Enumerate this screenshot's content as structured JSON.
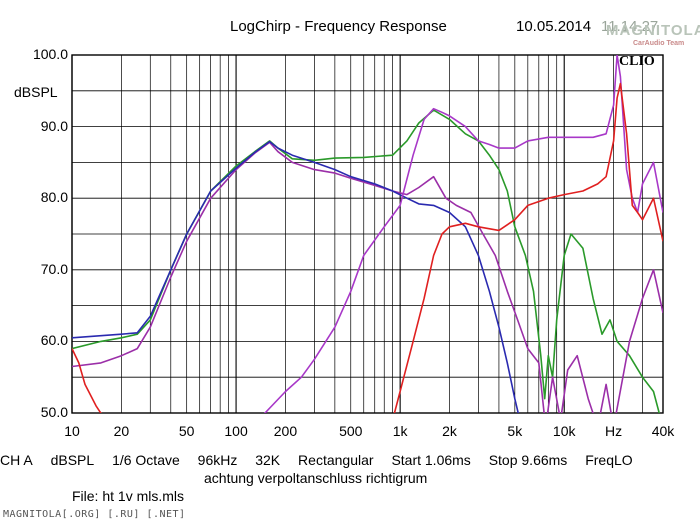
{
  "header": {
    "title": "LogChirp - Frequency Response",
    "date": "10.05.2014",
    "time": "11.14.27",
    "watermark": "MAGNITOLA",
    "watermark_sub": "CarAudio Team",
    "brand": "CLIO"
  },
  "info_bar": {
    "items": [
      "CH A",
      "dBSPL",
      "1/6 Octave",
      "96kHz",
      "32K",
      "Rectangular",
      "Start 1.06ms",
      "Stop 9.66ms",
      "FreqLO"
    ],
    "comment": "achtung verpoltanschluss richtigrum",
    "file": "File: ht 1v mls.mls"
  },
  "footer": "MAGNITOLA[.ORG] [.RU] [.NET]",
  "chart_data": {
    "type": "line",
    "title": "LogChirp - Frequency Response",
    "ylabel": "dBSPL",
    "xlabel": "",
    "x_scale": "log",
    "xlim": [
      10,
      40000
    ],
    "ylim": [
      50,
      100
    ],
    "grid": true,
    "legend": "none",
    "y_ticks": [
      {
        "value": 50,
        "label": "50.0"
      },
      {
        "value": 60,
        "label": "60.0"
      },
      {
        "value": 70,
        "label": "70.0"
      },
      {
        "value": 80,
        "label": "80.0"
      },
      {
        "value": 90,
        "label": "90.0"
      },
      {
        "value": 100,
        "label": "100.0"
      }
    ],
    "x_ticks": [
      {
        "value": 10,
        "label": "10"
      },
      {
        "value": 20,
        "label": "20"
      },
      {
        "value": 50,
        "label": "50"
      },
      {
        "value": 100,
        "label": "100"
      },
      {
        "value": 200,
        "label": "200"
      },
      {
        "value": 500,
        "label": "500"
      },
      {
        "value": 1000,
        "label": "1k"
      },
      {
        "value": 2000,
        "label": "2k"
      },
      {
        "value": 5000,
        "label": "5k"
      },
      {
        "value": 10000,
        "label": "10k"
      },
      {
        "value": 20000,
        "label": "Hz"
      },
      {
        "value": 40000,
        "label": "40k"
      }
    ],
    "series": [
      {
        "color": "#2a9a2a",
        "points": [
          [
            10,
            59
          ],
          [
            15,
            60
          ],
          [
            20,
            60.5
          ],
          [
            25,
            61
          ],
          [
            30,
            63
          ],
          [
            40,
            70
          ],
          [
            50,
            75
          ],
          [
            70,
            81
          ],
          [
            100,
            84.5
          ],
          [
            130,
            86.5
          ],
          [
            160,
            88
          ],
          [
            180,
            87
          ],
          [
            220,
            85.5
          ],
          [
            300,
            85.3
          ],
          [
            400,
            85.6
          ],
          [
            600,
            85.7
          ],
          [
            900,
            86
          ],
          [
            1100,
            88
          ],
          [
            1300,
            90.5
          ],
          [
            1600,
            92.3
          ],
          [
            2000,
            91
          ],
          [
            2500,
            89
          ],
          [
            3000,
            88
          ],
          [
            3500,
            86
          ],
          [
            4000,
            84
          ],
          [
            4500,
            81
          ],
          [
            5000,
            76
          ],
          [
            5800,
            72
          ],
          [
            6500,
            67
          ],
          [
            7200,
            58
          ],
          [
            7600,
            52
          ],
          [
            8000,
            58
          ],
          [
            8500,
            55
          ],
          [
            9000,
            63
          ],
          [
            10000,
            72
          ],
          [
            11000,
            75
          ],
          [
            13000,
            73
          ],
          [
            15000,
            66
          ],
          [
            17000,
            61
          ],
          [
            19000,
            63
          ],
          [
            21000,
            60
          ],
          [
            25000,
            58
          ],
          [
            30000,
            55
          ],
          [
            35000,
            53
          ],
          [
            40000,
            48
          ]
        ]
      },
      {
        "color": "#9b2fa8",
        "points": [
          [
            10,
            56.5
          ],
          [
            15,
            57
          ],
          [
            20,
            58
          ],
          [
            25,
            59
          ],
          [
            30,
            62
          ],
          [
            40,
            69
          ],
          [
            50,
            74
          ],
          [
            70,
            80
          ],
          [
            100,
            84
          ],
          [
            130,
            86.3
          ],
          [
            160,
            87.8
          ],
          [
            180,
            86.5
          ],
          [
            220,
            85
          ],
          [
            300,
            84
          ],
          [
            400,
            83.5
          ],
          [
            500,
            82.8
          ],
          [
            700,
            81.8
          ],
          [
            900,
            81
          ],
          [
            1100,
            80.5
          ],
          [
            1300,
            81.5
          ],
          [
            1600,
            83
          ],
          [
            1900,
            80
          ],
          [
            2200,
            79
          ],
          [
            2700,
            78
          ],
          [
            3200,
            75
          ],
          [
            3800,
            72
          ],
          [
            4500,
            67
          ],
          [
            5200,
            63
          ],
          [
            6000,
            59
          ],
          [
            7000,
            57
          ],
          [
            7700,
            48
          ],
          [
            8500,
            55
          ],
          [
            9500,
            49
          ],
          [
            10500,
            56
          ],
          [
            12000,
            58
          ],
          [
            14000,
            52
          ],
          [
            16000,
            48
          ],
          [
            18000,
            54
          ],
          [
            20000,
            48
          ],
          [
            25000,
            60
          ],
          [
            30000,
            66
          ],
          [
            35000,
            70
          ],
          [
            40000,
            64
          ]
        ]
      },
      {
        "color": "#2a2ab0",
        "points": [
          [
            10,
            60.5
          ],
          [
            15,
            60.8
          ],
          [
            20,
            61
          ],
          [
            25,
            61.2
          ],
          [
            30,
            63.5
          ],
          [
            40,
            70
          ],
          [
            50,
            75
          ],
          [
            70,
            81
          ],
          [
            100,
            84.2
          ],
          [
            130,
            86.4
          ],
          [
            160,
            87.9
          ],
          [
            180,
            87
          ],
          [
            220,
            86
          ],
          [
            300,
            85
          ],
          [
            400,
            84
          ],
          [
            500,
            83
          ],
          [
            700,
            82
          ],
          [
            900,
            81
          ],
          [
            1100,
            80
          ],
          [
            1300,
            79.2
          ],
          [
            1600,
            79
          ],
          [
            2000,
            78
          ],
          [
            2500,
            76
          ],
          [
            3000,
            72
          ],
          [
            3500,
            67
          ],
          [
            4000,
            62
          ],
          [
            4500,
            57
          ],
          [
            5000,
            52
          ],
          [
            5500,
            48
          ]
        ]
      },
      {
        "color": "#a838c8",
        "points": [
          [
            100,
            44
          ],
          [
            150,
            50
          ],
          [
            200,
            53
          ],
          [
            250,
            55
          ],
          [
            300,
            57.5
          ],
          [
            400,
            62
          ],
          [
            500,
            67
          ],
          [
            600,
            72
          ],
          [
            800,
            76
          ],
          [
            1000,
            79
          ],
          [
            1200,
            86
          ],
          [
            1400,
            91
          ],
          [
            1600,
            92.5
          ],
          [
            1800,
            92
          ],
          [
            2000,
            91.5
          ],
          [
            2500,
            90
          ],
          [
            3000,
            88
          ],
          [
            3500,
            87.5
          ],
          [
            4000,
            87
          ],
          [
            5000,
            87
          ],
          [
            6000,
            88
          ],
          [
            8000,
            88.5
          ],
          [
            10000,
            88.5
          ],
          [
            15000,
            88.5
          ],
          [
            18000,
            89
          ],
          [
            20000,
            93
          ],
          [
            21000,
            100
          ],
          [
            22000,
            97
          ],
          [
            24000,
            84
          ],
          [
            26000,
            80
          ],
          [
            28000,
            78
          ],
          [
            30000,
            82
          ],
          [
            35000,
            85
          ],
          [
            40000,
            78
          ]
        ]
      },
      {
        "color": "#e02020",
        "points": [
          [
            10,
            59
          ],
          [
            11,
            57
          ],
          [
            12,
            54
          ],
          [
            14,
            51
          ],
          [
            16,
            49
          ],
          [
            900,
            49
          ],
          [
            1000,
            53
          ],
          [
            1200,
            60
          ],
          [
            1400,
            66
          ],
          [
            1600,
            72
          ],
          [
            1800,
            75
          ],
          [
            2000,
            76
          ],
          [
            2500,
            76.5
          ],
          [
            3000,
            76
          ],
          [
            4000,
            75.5
          ],
          [
            5000,
            77
          ],
          [
            6000,
            79
          ],
          [
            8000,
            80
          ],
          [
            10000,
            80.5
          ],
          [
            13000,
            81
          ],
          [
            16000,
            82
          ],
          [
            18000,
            83
          ],
          [
            20000,
            88
          ],
          [
            21000,
            94
          ],
          [
            22000,
            96
          ],
          [
            24000,
            89
          ],
          [
            26000,
            79
          ],
          [
            28000,
            78
          ],
          [
            30000,
            77
          ],
          [
            35000,
            80
          ],
          [
            40000,
            74
          ]
        ]
      }
    ]
  }
}
